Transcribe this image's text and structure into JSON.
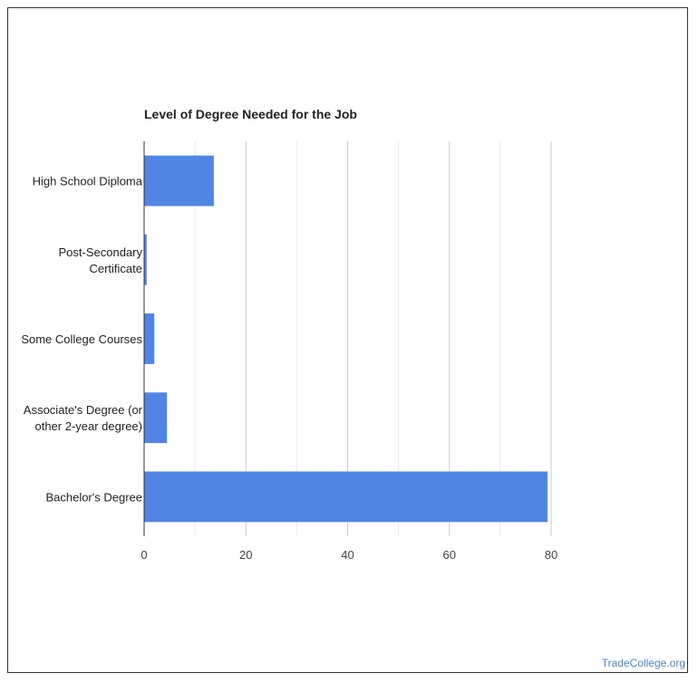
{
  "chart_data": {
    "type": "bar",
    "orientation": "horizontal",
    "title": "Level of Degree Needed for the Job",
    "categories": [
      [
        "High School Diploma"
      ],
      [
        "Post-Secondary",
        "Certificate"
      ],
      [
        "Some College Courses"
      ],
      [
        "Associate's Degree (or",
        "other 2-year degree)"
      ],
      [
        "Bachelor's Degree"
      ]
    ],
    "values": [
      13.7,
      0.5,
      2.0,
      4.5,
      79.3
    ],
    "xlim": [
      0,
      80
    ],
    "xticks": [
      0,
      20,
      40,
      60,
      80
    ],
    "grid": true,
    "bar_color": "#5085e4",
    "xlabel": "",
    "ylabel": ""
  },
  "credit": {
    "text": "TradeCollege.org",
    "color": "#4a86c9"
  }
}
